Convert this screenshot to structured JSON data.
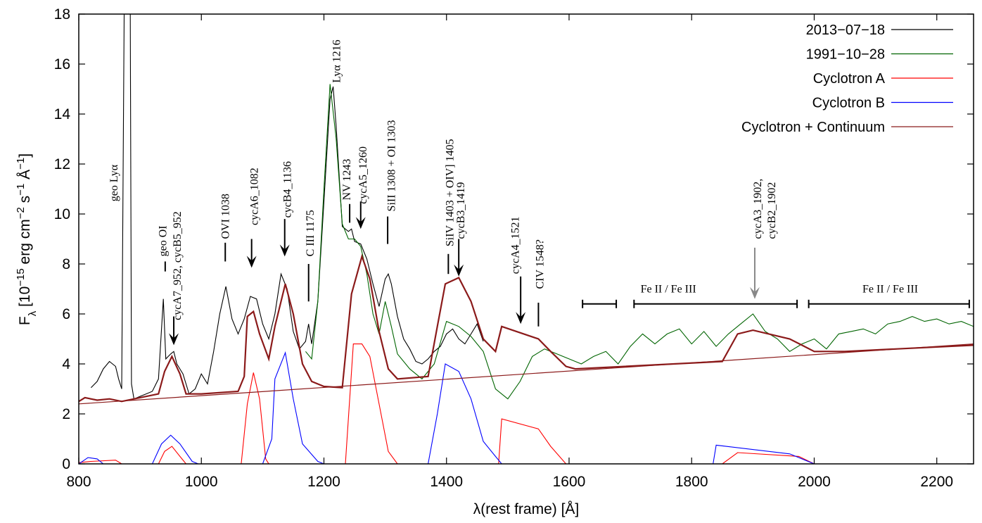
{
  "chart_data": {
    "type": "line",
    "xlabel": "λ(rest frame) [Å]",
    "ylabel": [
      {
        "text": "F",
        "style": "normal"
      },
      {
        "text": "λ",
        "style": "sub"
      },
      {
        "text": " [10",
        "style": "normal"
      },
      {
        "text": "−15",
        "style": "sup"
      },
      {
        "text": " erg cm",
        "style": "normal"
      },
      {
        "text": "−2",
        "style": "sup"
      },
      {
        "text": " s",
        "style": "normal"
      },
      {
        "text": "−1",
        "style": "sup"
      },
      {
        "text": " Å",
        "style": "normal"
      },
      {
        "text": "−1",
        "style": "sup"
      },
      {
        "text": "]",
        "style": "normal"
      }
    ],
    "xlim": [
      800,
      2260
    ],
    "ylim": [
      0,
      18
    ],
    "xticks": [
      800,
      1000,
      1200,
      1400,
      1600,
      1800,
      2000,
      2200
    ],
    "yticks": [
      0,
      2,
      4,
      6,
      8,
      10,
      12,
      14,
      16,
      18
    ],
    "grid": false,
    "legend": "top-right",
    "series": [
      {
        "name": "2013−07−18",
        "color": "#000000",
        "x": [
          820,
          830,
          840,
          850,
          860,
          865,
          870,
          874,
          884,
          886,
          890,
          900,
          910,
          920,
          930,
          938,
          942,
          950,
          955,
          960,
          970,
          980,
          990,
          1000,
          1010,
          1020,
          1030,
          1040,
          1050,
          1060,
          1070,
          1080,
          1090,
          1100,
          1110,
          1120,
          1130,
          1140,
          1150,
          1160,
          1170,
          1175,
          1180,
          1190,
          1200,
          1210,
          1215,
          1220,
          1230,
          1240,
          1245,
          1250,
          1260,
          1270,
          1280,
          1290,
          1300,
          1305,
          1310,
          1320,
          1330,
          1340,
          1350,
          1360,
          1370,
          1380,
          1390,
          1400,
          1410,
          1420,
          1430,
          1440,
          1450,
          1460
        ],
        "values": [
          3.05,
          3.3,
          3.8,
          4.1,
          3.9,
          3.4,
          3.0,
          18,
          18,
          3.2,
          2.6,
          2.7,
          2.8,
          2.9,
          3.4,
          6.6,
          4.2,
          4.4,
          4.5,
          4.0,
          3.6,
          2.8,
          3.0,
          3.6,
          3.2,
          4.5,
          6.0,
          7.1,
          5.8,
          5.2,
          5.8,
          6.7,
          6.6,
          5.6,
          5.0,
          6.0,
          7.6,
          7.0,
          5.3,
          4.6,
          4.9,
          5.6,
          4.8,
          6.5,
          10.5,
          14.6,
          15.1,
          13.5,
          9.5,
          9.3,
          9.4,
          8.9,
          8.8,
          8.2,
          7.2,
          6.3,
          7.4,
          7.6,
          7.2,
          5.9,
          5.0,
          4.6,
          4.1,
          4.0,
          4.2,
          4.5,
          4.7,
          5.2,
          5.4,
          5.0,
          4.8,
          5.2,
          5.6,
          4.9
        ]
      },
      {
        "name": "1991−10−28",
        "color": "#006400",
        "x": [
          1170,
          1180,
          1190,
          1200,
          1210,
          1220,
          1230,
          1240,
          1250,
          1260,
          1270,
          1280,
          1290,
          1300,
          1310,
          1320,
          1340,
          1360,
          1380,
          1400,
          1420,
          1440,
          1460,
          1480,
          1500,
          1520,
          1540,
          1560,
          1580,
          1600,
          1620,
          1640,
          1660,
          1680,
          1700,
          1720,
          1740,
          1760,
          1780,
          1800,
          1820,
          1840,
          1860,
          1880,
          1900,
          1920,
          1940,
          1960,
          1980,
          2000,
          2020,
          2040,
          2060,
          2080,
          2100,
          2120,
          2140,
          2160,
          2180,
          2200,
          2220,
          2240,
          2260
        ],
        "values": [
          4.5,
          4.2,
          6.5,
          11,
          15.2,
          13,
          9.6,
          9.0,
          9.0,
          8.7,
          7.6,
          6.0,
          5.2,
          6.5,
          5.5,
          4.4,
          3.8,
          3.4,
          4.0,
          5.7,
          5.5,
          5.1,
          4.5,
          3.0,
          2.6,
          3.3,
          4.3,
          4.6,
          4.4,
          4.2,
          4.0,
          4.3,
          4.5,
          4.0,
          4.7,
          5.2,
          4.8,
          5.2,
          5.4,
          4.8,
          5.3,
          4.7,
          5.2,
          5.6,
          6.0,
          5.3,
          5.0,
          4.5,
          4.8,
          5.0,
          4.6,
          5.2,
          5.3,
          5.4,
          5.2,
          5.6,
          5.7,
          5.9,
          5.7,
          5.8,
          5.6,
          5.7,
          5.5
        ]
      },
      {
        "name": "Cyclotron A",
        "color": "#ff0000",
        "x": [
          800,
          820,
          860,
          870,
          930,
          940,
          952,
          965,
          975,
          1065,
          1075,
          1085,
          1095,
          1105,
          1110,
          1235,
          1248,
          1262,
          1275,
          1290,
          1305,
          1320,
          1485,
          1490,
          1550,
          1570,
          1595,
          1850,
          1875,
          1975,
          2000
        ],
        "values": [
          0.05,
          0.1,
          0.15,
          0,
          0,
          0.5,
          0.7,
          0.3,
          0,
          0,
          2.4,
          3.65,
          2.6,
          0.2,
          0,
          0,
          4.8,
          4.8,
          4.3,
          2.4,
          0.5,
          0,
          0,
          1.8,
          1.4,
          0.7,
          0,
          0,
          0.45,
          0.3,
          0
        ]
      },
      {
        "name": "Cyclotron B",
        "color": "#0000ff",
        "x": [
          800,
          815,
          830,
          840,
          920,
          935,
          950,
          965,
          985,
          995,
          1100,
          1115,
          1120,
          1137,
          1150,
          1165,
          1190,
          1200,
          1370,
          1385,
          1398,
          1420,
          1440,
          1460,
          1480,
          1490,
          1835,
          1840,
          1960,
          2000
        ],
        "values": [
          0,
          0.25,
          0.2,
          0,
          0,
          0.8,
          1.15,
          0.8,
          0.1,
          0,
          0,
          1.0,
          3.4,
          4.45,
          2.6,
          0.8,
          0.1,
          0,
          0,
          2.0,
          4.0,
          3.7,
          2.6,
          0.9,
          0.3,
          0,
          0,
          0.75,
          0.4,
          0
        ]
      },
      {
        "name": "Cyclotron + Continuum",
        "color": "#8b1a1a",
        "x": [
          800,
          810,
          830,
          850,
          870,
          930,
          940,
          952,
          965,
          975,
          1000,
          1060,
          1070,
          1075,
          1085,
          1095,
          1110,
          1120,
          1137,
          1150,
          1165,
          1180,
          1200,
          1230,
          1245,
          1262,
          1275,
          1290,
          1305,
          1320,
          1370,
          1385,
          1398,
          1420,
          1440,
          1460,
          1480,
          1490,
          1550,
          1570,
          1595,
          1610,
          1850,
          1875,
          1900,
          1960,
          2000,
          2050,
          2260
        ],
        "values": [
          2.5,
          2.65,
          2.55,
          2.6,
          2.5,
          2.8,
          3.7,
          4.3,
          3.6,
          2.8,
          2.8,
          2.9,
          3.5,
          5.9,
          6.1,
          5.2,
          4.2,
          5.5,
          7.2,
          6.0,
          4.0,
          3.3,
          3.1,
          3.05,
          6.8,
          8.3,
          7.4,
          5.3,
          3.8,
          3.4,
          3.5,
          5.5,
          7.2,
          7.45,
          6.5,
          5.0,
          4.5,
          5.5,
          5.0,
          4.5,
          3.9,
          3.8,
          4.1,
          5.2,
          5.35,
          5.0,
          4.5,
          4.5,
          4.75
        ]
      },
      {
        "color": "#8b1a1a",
        "x": [
          800,
          2260
        ],
        "values": [
          2.4,
          4.8
        ]
      }
    ],
    "annotations": [
      {
        "lines": [
          "geo Lyα"
        ],
        "x": 858,
        "y": 10.5
      },
      {
        "lines": [
          "geo OI"
        ],
        "x": 938,
        "y": 8.3,
        "marker": {
          "x": 941,
          "y": [
            8.1,
            7.7
          ],
          "arrow": false
        }
      },
      {
        "lines": [
          "cycA7_952, cycB5_952"
        ],
        "x": 961,
        "y": 5.75,
        "marker": {
          "x": 955,
          "y": [
            5.9,
            4.75
          ],
          "arrow": true
        }
      },
      {
        "lines": [
          "OVI 1038"
        ],
        "x": 1040,
        "y": 9.0,
        "marker": {
          "x": 1039,
          "y": [
            8.85,
            8.1
          ],
          "arrow": false
        }
      },
      {
        "lines": [
          "cycA6_1082"
        ],
        "x": 1087,
        "y": 9.55,
        "marker": {
          "x": 1082,
          "y": [
            9.0,
            7.85
          ],
          "arrow": true
        }
      },
      {
        "lines": [
          "cycB4_1136"
        ],
        "x": 1141,
        "y": 9.85,
        "marker": {
          "x": 1136,
          "y": [
            9.8,
            8.3
          ],
          "arrow": true
        }
      },
      {
        "lines": [
          "C III 1175"
        ],
        "x": 1178,
        "y": 8.3,
        "marker": {
          "x": 1175,
          "y": [
            8.0,
            6.5
          ],
          "arrow": false
        }
      },
      {
        "lines": [
          "Lyα 1216"
        ],
        "x": 1221,
        "y": 15.25
      },
      {
        "lines": [
          "NV 1243"
        ],
        "x": 1238,
        "y": 10.55,
        "marker": {
          "x": 1242,
          "y": [
            10.4,
            9.65
          ],
          "arrow": false
        }
      },
      {
        "lines": [
          "cycA5_1260"
        ],
        "x": 1264,
        "y": 10.4,
        "marker": {
          "x": 1260,
          "y": [
            10.5,
            9.4
          ],
          "arrow": true
        }
      },
      {
        "lines": [
          "SiII 1308 + OI 1303"
        ],
        "x": 1311,
        "y": 10.1,
        "marker": {
          "x": 1304,
          "y": [
            9.9,
            8.8
          ],
          "arrow": false
        }
      },
      {
        "lines": [
          "SiIV 1403 + OIV] 1405"
        ],
        "x": 1406,
        "y": 8.7,
        "marker": {
          "x": 1403,
          "y": [
            8.4,
            7.6
          ],
          "arrow": false
        }
      },
      {
        "lines": [
          "cycB3_1419"
        ],
        "x": 1424,
        "y": 9.0,
        "marker": {
          "x": 1420,
          "y": [
            9.0,
            7.5
          ],
          "arrow": true
        }
      },
      {
        "lines": [
          "cycA4_1521"
        ],
        "x": 1513,
        "y": 7.6,
        "marker": {
          "x": 1521,
          "y": [
            7.5,
            5.6
          ],
          "arrow": true
        }
      },
      {
        "lines": [
          "CIV 1548?"
        ],
        "x": 1553,
        "y": 7.0,
        "marker": {
          "x": 1550,
          "y": [
            6.45,
            5.5
          ],
          "arrow": false
        }
      },
      {
        "lines": [
          "cycA3_1902,",
          "cycB2_1902"
        ],
        "x": 1908,
        "y": 9.0,
        "marker": {
          "x": 1903,
          "y": [
            8.65,
            6.6
          ],
          "arrow": true,
          "color": "#888888"
        }
      }
    ],
    "ranges": [
      {
        "text": "Fe II / Fe III",
        "x": 1762,
        "y": 7.0,
        "level": 6.4,
        "spans": [
          [
            1622,
            1677
          ],
          [
            1706,
            1972
          ]
        ]
      },
      {
        "text": "Fe II / Fe III",
        "x": 2124,
        "y": 7.0,
        "level": 6.4,
        "spans": [
          [
            1991,
            2253
          ]
        ]
      }
    ]
  }
}
